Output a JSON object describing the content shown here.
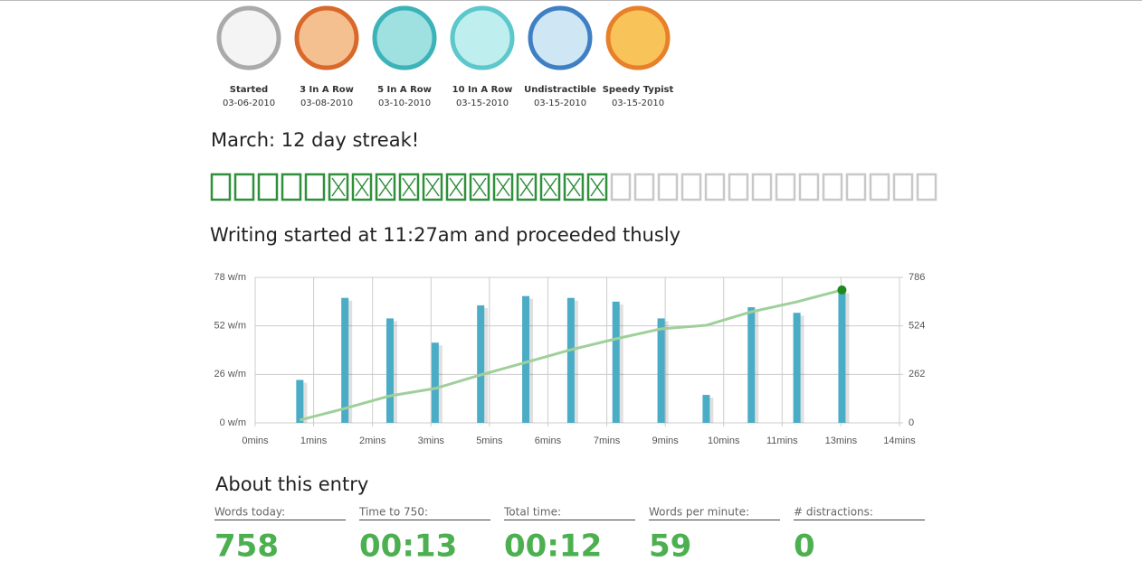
{
  "badges": [
    {
      "name": "Started",
      "date": "03-06-2010"
    },
    {
      "name": "3 In A Row",
      "date": "03-08-2010"
    },
    {
      "name": "5 In A Row",
      "date": "03-10-2010"
    },
    {
      "name": "10 In A Row",
      "date": "03-15-2010"
    },
    {
      "name": "Undistractible",
      "date": "03-15-2010"
    },
    {
      "name": "Speedy Typist",
      "date": "03-15-2010"
    }
  ],
  "streak": {
    "title": "March: 12 day streak!",
    "days_in_month": 31,
    "days_before_streak": 5,
    "streak_days": 12
  },
  "chart_heading": "Writing started at 11:27am and proceeded thusly",
  "chart_data": {
    "type": "bar",
    "x": [
      0.97,
      1.95,
      2.93,
      3.91,
      4.9,
      5.88,
      6.86,
      7.84,
      8.82,
      9.8,
      10.78,
      11.77,
      12.75
    ],
    "xlim": [
      0,
      14
    ],
    "xticks": [
      {
        "value": 0,
        "label": "0mins"
      },
      {
        "value": 1.27,
        "label": "1mins"
      },
      {
        "value": 2.55,
        "label": "2mins"
      },
      {
        "value": 3.82,
        "label": "3mins"
      },
      {
        "value": 5.09,
        "label": "5mins"
      },
      {
        "value": 6.36,
        "label": "6mins"
      },
      {
        "value": 7.64,
        "label": "7mins"
      },
      {
        "value": 8.91,
        "label": "9mins"
      },
      {
        "value": 10.18,
        "label": "10mins"
      },
      {
        "value": 11.45,
        "label": "11mins"
      },
      {
        "value": 12.73,
        "label": "13mins"
      },
      {
        "value": 14,
        "label": "14mins"
      }
    ],
    "ylim": [
      0,
      78
    ],
    "yticks": [
      {
        "value": 0,
        "label": "0 w/m"
      },
      {
        "value": 26,
        "label": "26 w/m"
      },
      {
        "value": 52,
        "label": "52 w/m"
      },
      {
        "value": 78,
        "label": "78 w/m"
      }
    ],
    "y2lim": [
      0,
      786
    ],
    "y2ticks": [
      0,
      262,
      524,
      786
    ],
    "grid": true,
    "series": [
      {
        "type": "bar",
        "color": "#4bacc6",
        "values": [
          23,
          67,
          56,
          43,
          63,
          68,
          67,
          65,
          56,
          15,
          62,
          59,
          71
        ]
      },
      {
        "type": "line",
        "axis": "y2",
        "color": "#9fd09a",
        "marker_color": "#1e8a1e",
        "values": [
          15,
          78,
          146,
          186,
          259,
          327,
          395,
          454,
          508,
          527,
          600,
          654,
          718
        ]
      }
    ]
  },
  "about": {
    "title": "About this entry",
    "stats": [
      {
        "label": "Words today:",
        "value": 758
      },
      {
        "label": "Time to 750:",
        "value": "00:13"
      },
      {
        "label": "Total time:",
        "value": "00:12"
      },
      {
        "label": "Words per minute:",
        "value": 59
      },
      {
        "label": "# distractions:",
        "value": 0
      }
    ]
  }
}
